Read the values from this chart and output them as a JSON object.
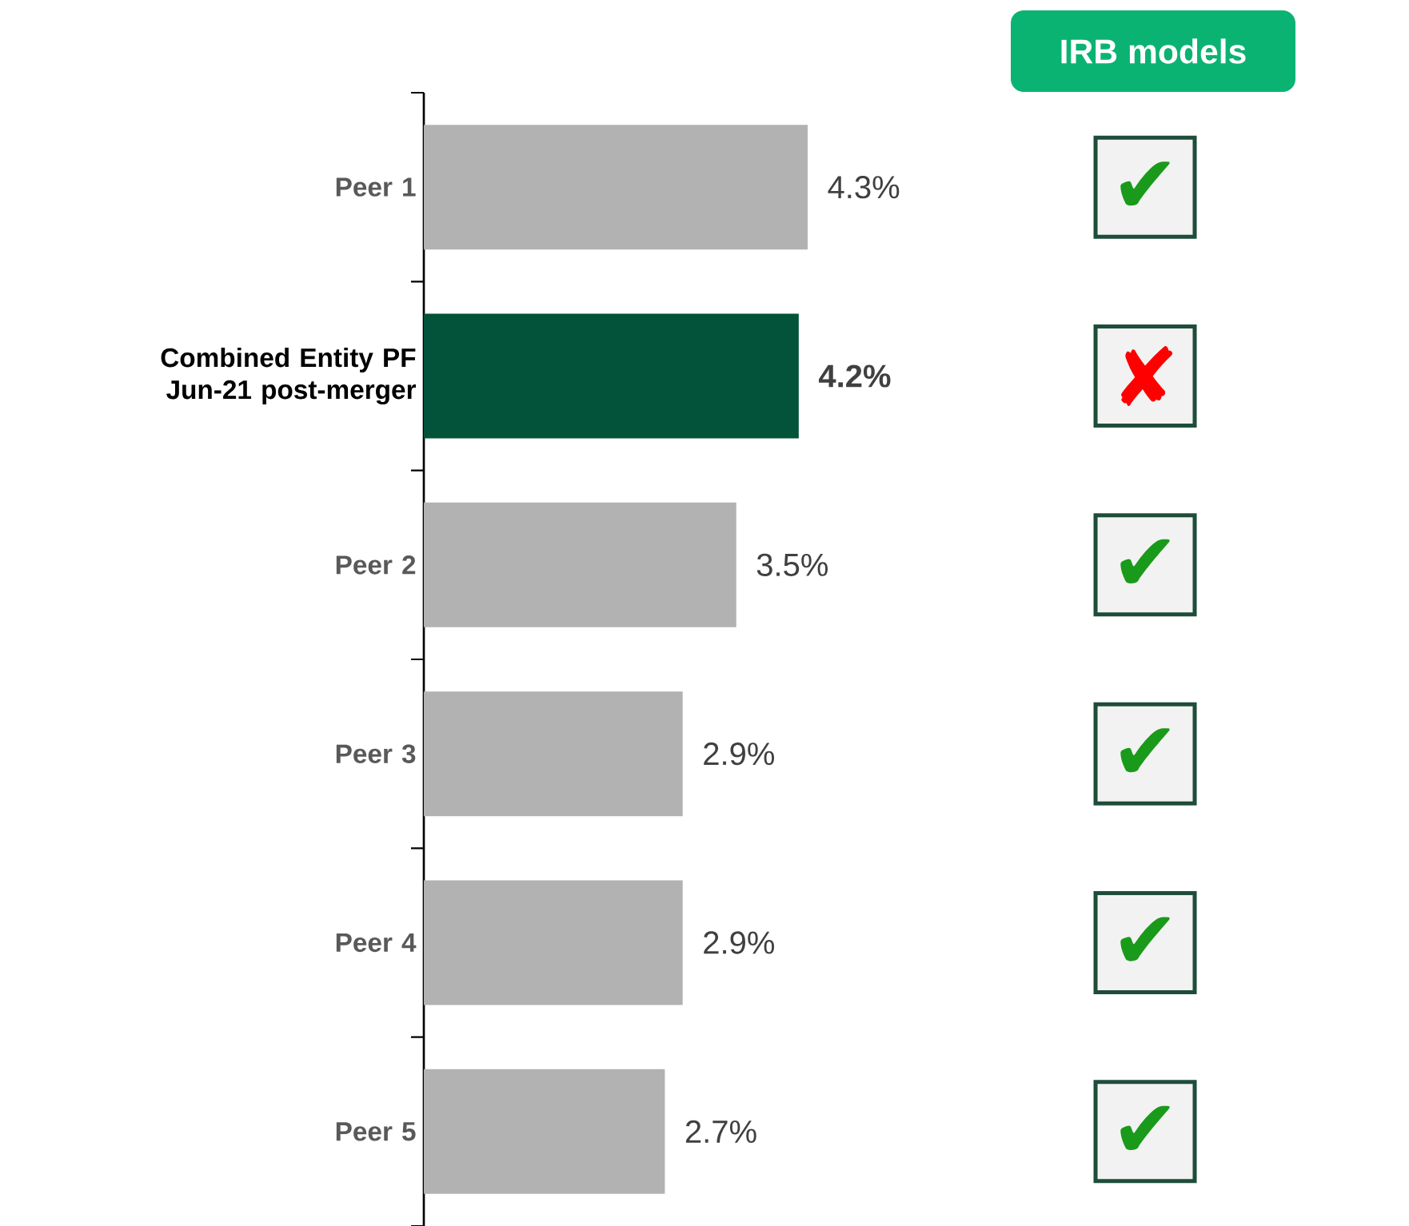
{
  "chart_data": {
    "type": "bar",
    "orientation": "horizontal",
    "categories": [
      "Peer 1",
      "Combined Entity PF Jun-21 post-merger",
      "Peer 2",
      "Peer 3",
      "Peer 4",
      "Peer 5"
    ],
    "values": [
      4.3,
      4.2,
      3.5,
      2.9,
      2.9,
      2.7
    ],
    "colors": [
      "#b2b2b2",
      "#03533a",
      "#b2b2b2",
      "#b2b2b2",
      "#b2b2b2",
      "#b2b2b2"
    ],
    "value_labels": [
      "4.3%",
      "4.2%",
      "3.5%",
      "2.9%",
      "2.9%",
      "2.7%"
    ],
    "annotations": [
      "IRB models",
      "✔",
      "✘",
      "✔",
      "✔",
      "✔",
      "✔"
    ]
  }
}
